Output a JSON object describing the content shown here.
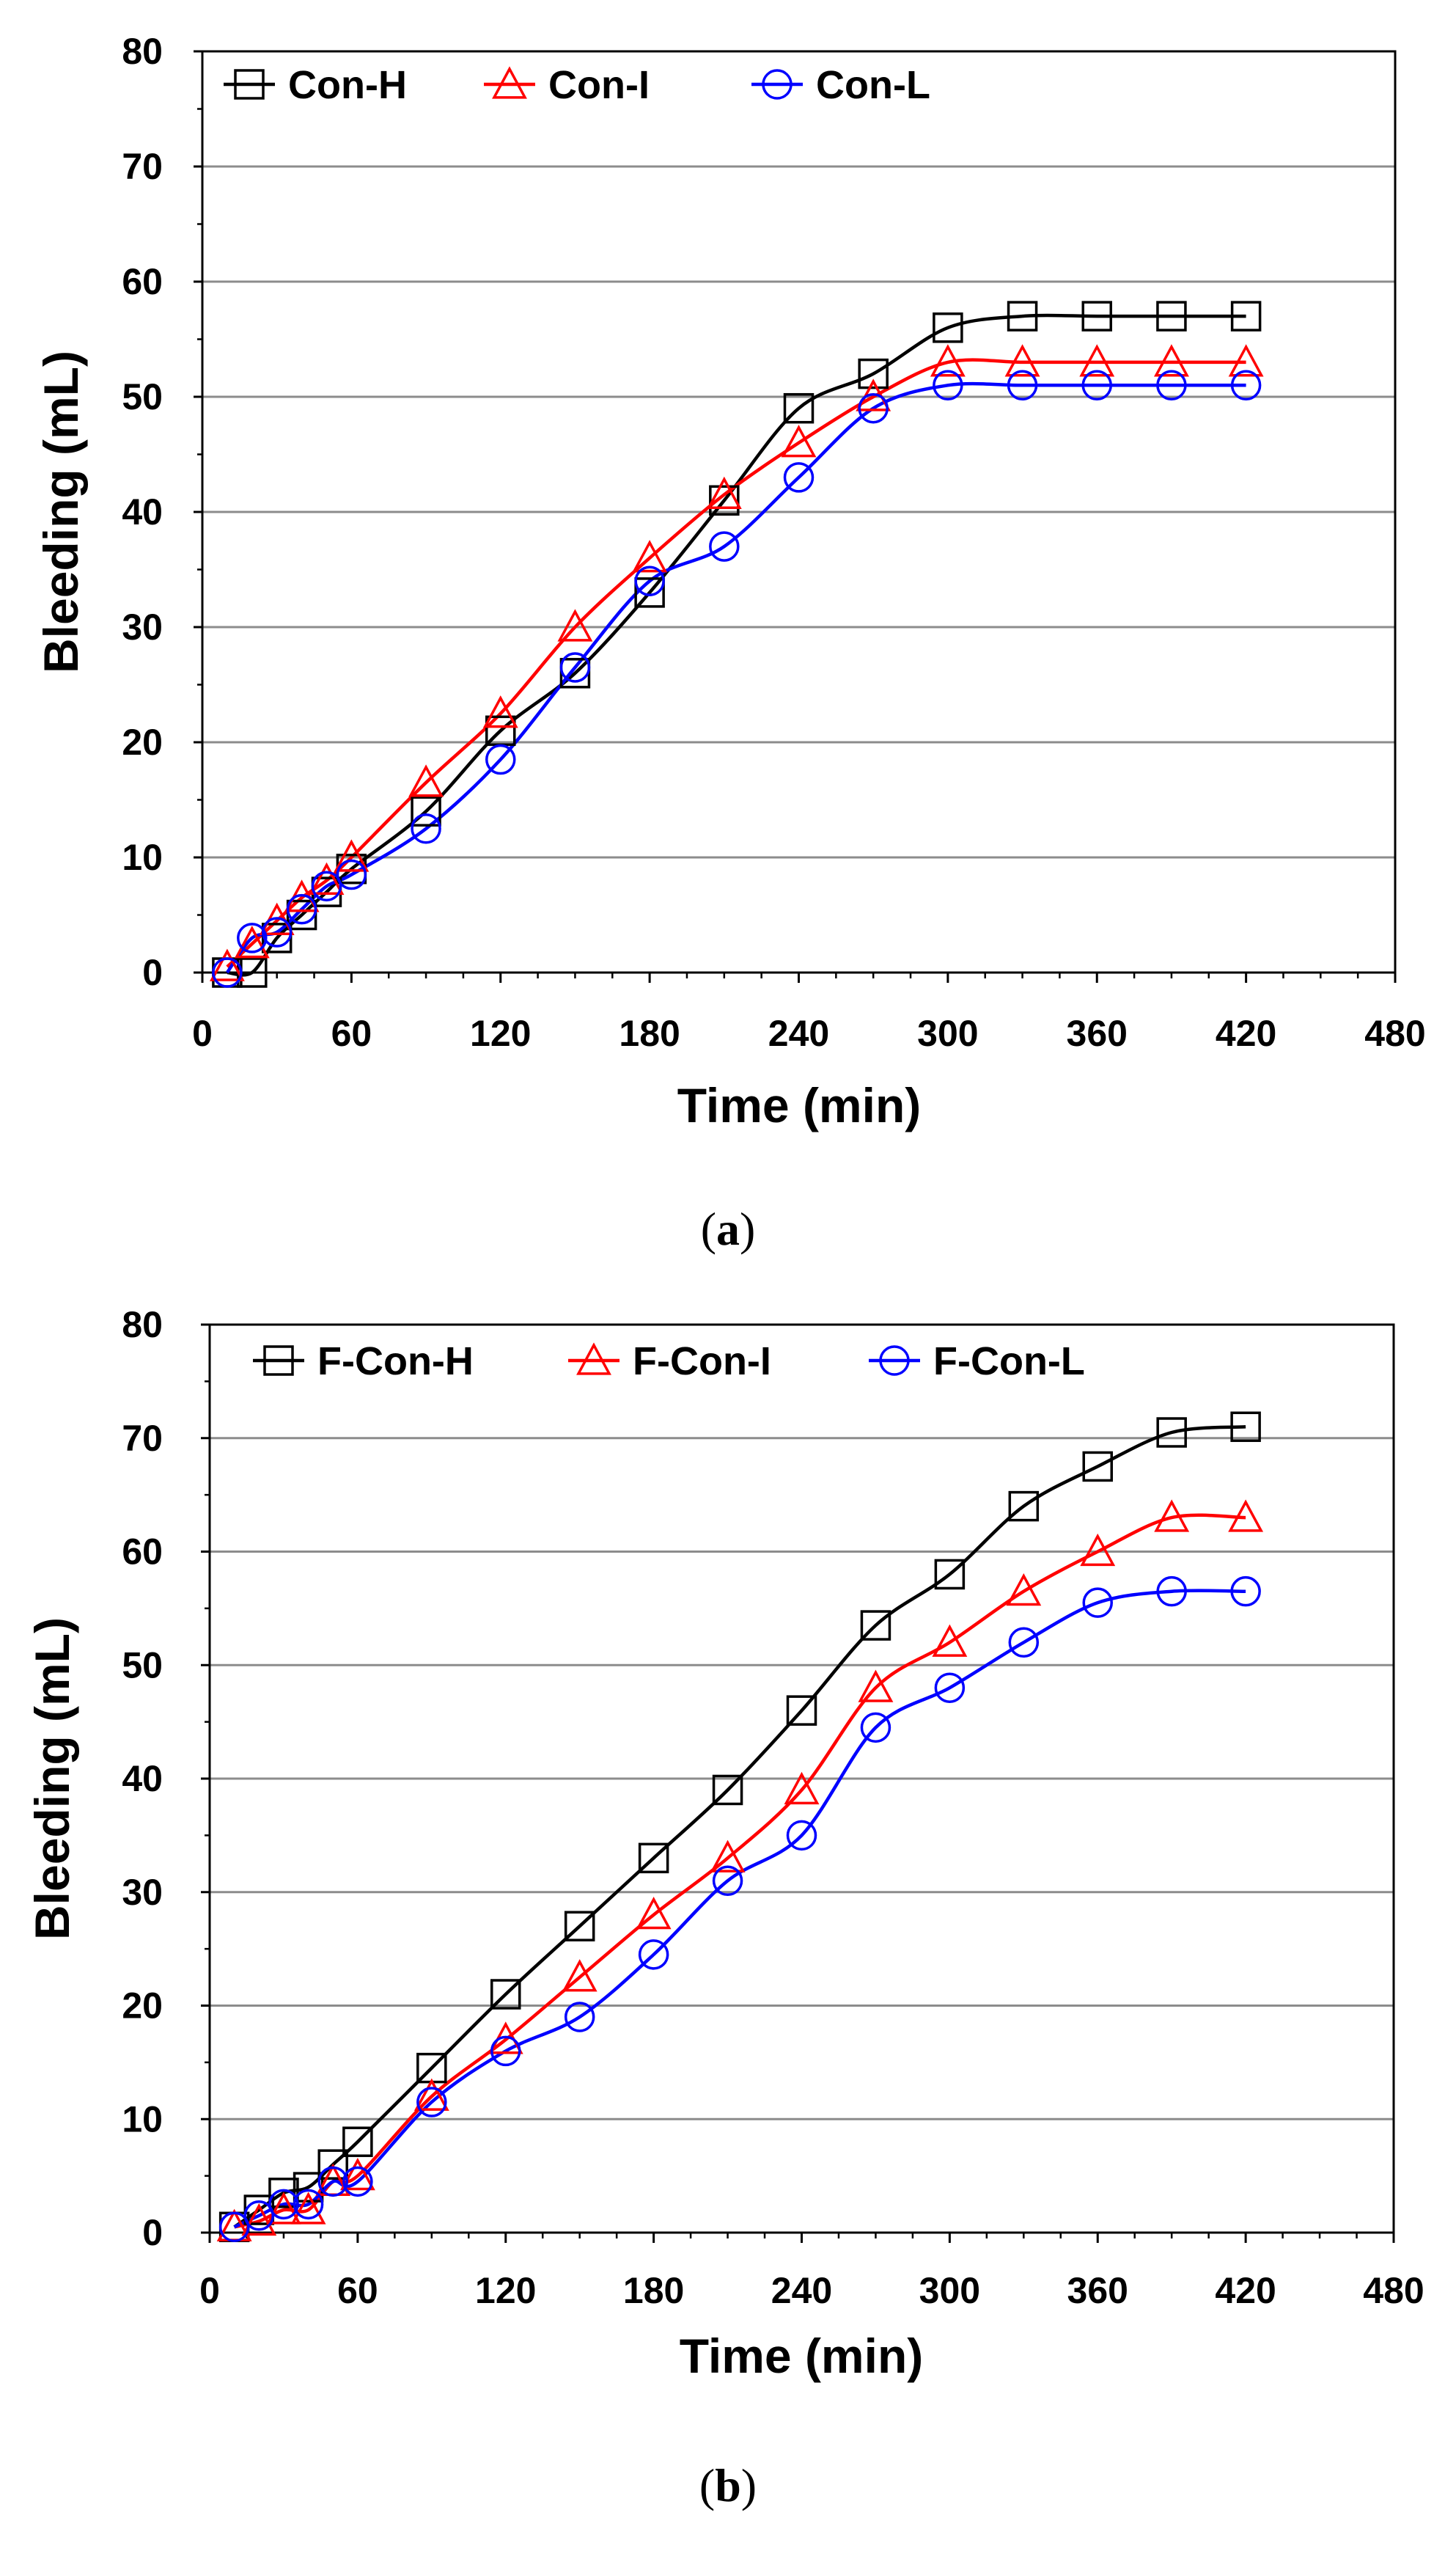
{
  "chart_data": [
    {
      "panel": "a",
      "caption": {
        "open": "(",
        "letter": "a",
        "close": ")"
      },
      "type": "line",
      "title": "",
      "xlabel": "Time (min)",
      "ylabel": "Bleeding (mL)",
      "xlim": [
        0,
        480
      ],
      "ylim": [
        0,
        80
      ],
      "xticks": [
        "0",
        "60",
        "120",
        "180",
        "240",
        "300",
        "360",
        "420",
        "480"
      ],
      "yticks": [
        "0",
        "10",
        "20",
        "30",
        "40",
        "50",
        "60",
        "70",
        "80"
      ],
      "legend_position": "top-left",
      "grid": "horizontal",
      "series": [
        {
          "name": "Con-H",
          "color": "#000000",
          "marker": "square",
          "x": [
            10,
            20,
            30,
            40,
            50,
            60,
            90,
            120,
            150,
            180,
            210,
            240,
            270,
            300,
            330,
            360,
            390,
            420
          ],
          "y": [
            0,
            0,
            3,
            5,
            7,
            9,
            14,
            21,
            26,
            33,
            41,
            49,
            52,
            56,
            57,
            57,
            57,
            57
          ]
        },
        {
          "name": "Con-I",
          "color": "#ff0000",
          "marker": "triangle",
          "x": [
            10,
            20,
            30,
            40,
            50,
            60,
            90,
            120,
            150,
            180,
            210,
            240,
            270,
            300,
            330,
            360,
            390,
            420
          ],
          "y": [
            0.5,
            2.5,
            4.5,
            6.5,
            8,
            10,
            16.5,
            22.5,
            30,
            36,
            41.5,
            46,
            50,
            53,
            53,
            53,
            53,
            53
          ]
        },
        {
          "name": "Con-L",
          "color": "#0000ff",
          "marker": "circle",
          "x": [
            10,
            20,
            30,
            40,
            50,
            60,
            90,
            120,
            150,
            180,
            210,
            240,
            270,
            300,
            330,
            360,
            390,
            420
          ],
          "y": [
            0,
            3,
            3.5,
            5.5,
            7.5,
            8.5,
            12.5,
            18.5,
            26.5,
            34,
            37,
            43,
            49,
            51,
            51,
            51,
            51,
            51
          ]
        }
      ]
    },
    {
      "panel": "b",
      "caption": {
        "open": "(",
        "letter": "b",
        "close": ")"
      },
      "type": "line",
      "title": "",
      "xlabel": "Time (min)",
      "ylabel": "Bleeding (mL)",
      "xlim": [
        0,
        480
      ],
      "ylim": [
        0,
        80
      ],
      "xticks": [
        "0",
        "60",
        "120",
        "180",
        "240",
        "300",
        "360",
        "420",
        "480"
      ],
      "yticks": [
        "0",
        "10",
        "20",
        "30",
        "40",
        "50",
        "60",
        "70",
        "80"
      ],
      "legend_position": "top-left",
      "grid": "horizontal",
      "series": [
        {
          "name": "F-Con-H",
          "color": "#000000",
          "marker": "square",
          "x": [
            10,
            20,
            30,
            40,
            50,
            60,
            90,
            120,
            150,
            180,
            210,
            240,
            270,
            300,
            330,
            360,
            390,
            420
          ],
          "y": [
            0.5,
            2,
            3.5,
            4,
            6,
            8,
            14.5,
            21,
            27,
            33,
            39,
            46,
            53.5,
            58,
            64,
            67.5,
            70.5,
            71
          ]
        },
        {
          "name": "F-Con-I",
          "color": "#ff0000",
          "marker": "triangle",
          "x": [
            10,
            20,
            30,
            40,
            50,
            60,
            90,
            120,
            150,
            180,
            210,
            240,
            270,
            300,
            330,
            360,
            390,
            420
          ],
          "y": [
            0.5,
            1,
            2,
            2,
            4.5,
            5,
            12,
            17,
            22.5,
            28,
            33,
            39,
            48,
            52,
            56.5,
            60,
            63,
            63
          ]
        },
        {
          "name": "F-Con-L",
          "color": "#0000ff",
          "marker": "circle",
          "x": [
            10,
            20,
            30,
            40,
            50,
            60,
            90,
            120,
            150,
            180,
            210,
            240,
            270,
            300,
            330,
            360,
            390,
            420
          ],
          "y": [
            0.5,
            1.5,
            2.5,
            2.5,
            4.5,
            4.5,
            11.5,
            16,
            19,
            24.5,
            31,
            35,
            44.5,
            48,
            52,
            55.5,
            56.5,
            56.5
          ]
        }
      ]
    }
  ]
}
